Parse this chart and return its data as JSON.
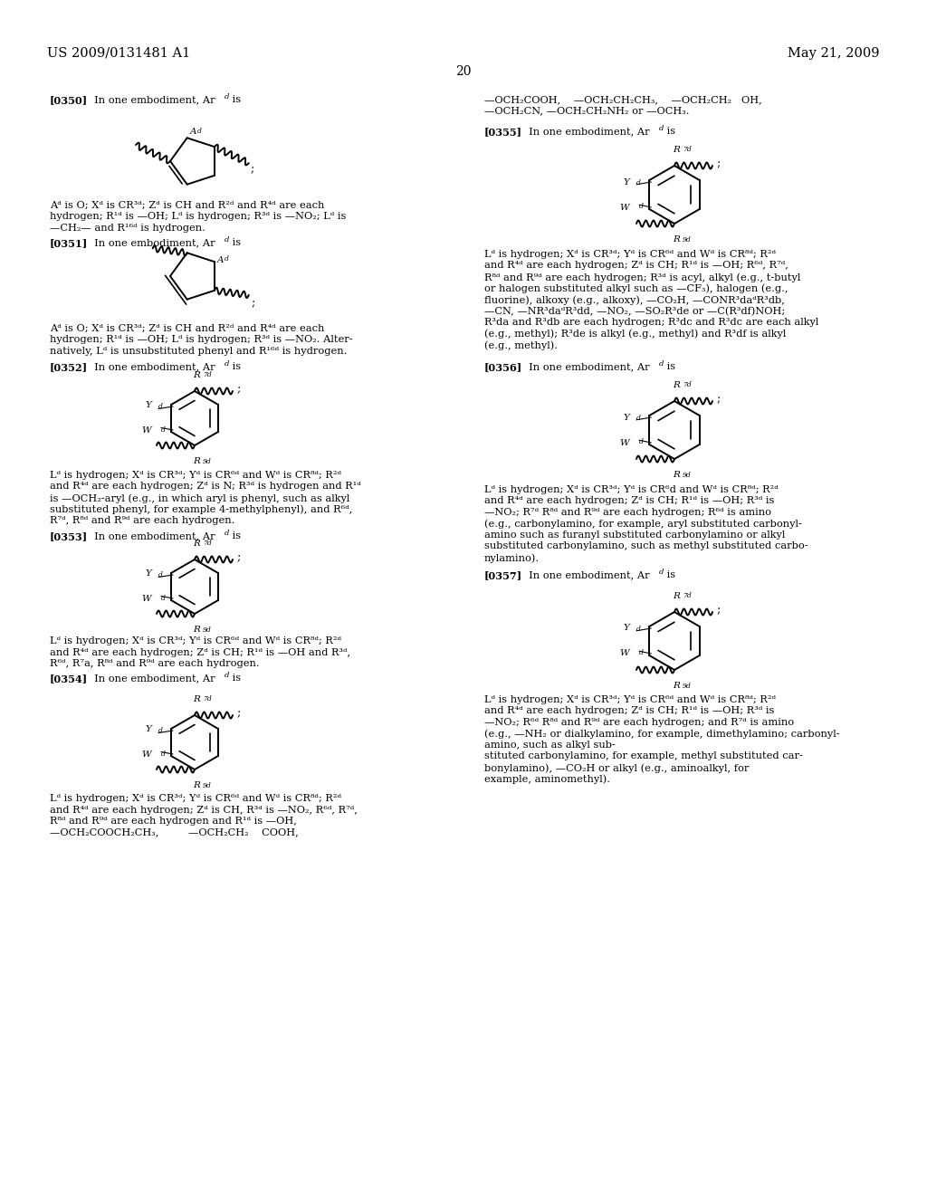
{
  "background_color": "#ffffff",
  "header_left": "US 2009/0131481 A1",
  "header_right": "May 21, 2009",
  "page_number": "20"
}
